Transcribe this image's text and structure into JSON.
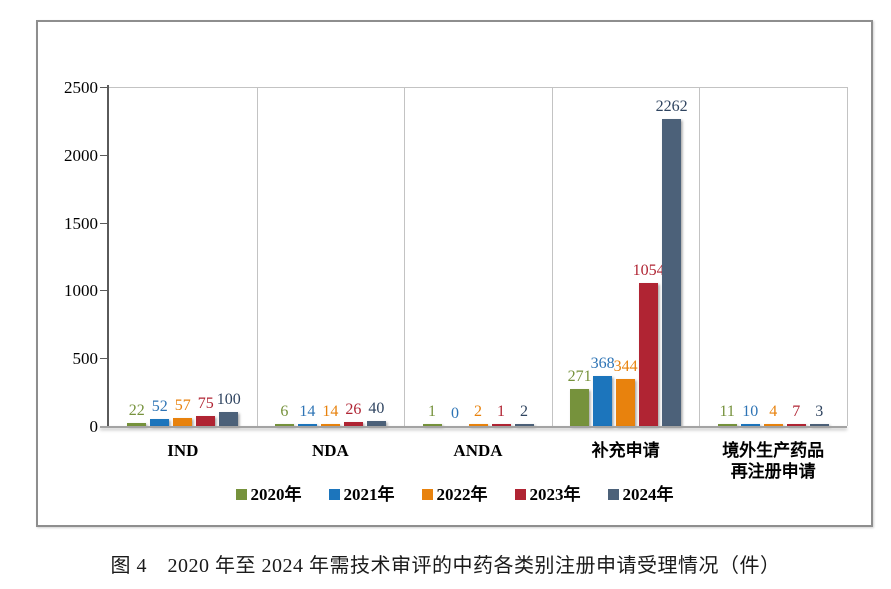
{
  "caption": "图 4　2020 年至 2024 年需技术审评的中药各类别注册申请受理情况（件）",
  "chart_data": {
    "type": "bar",
    "title": "",
    "xlabel": "",
    "ylabel": "",
    "ylim": [
      0,
      2500
    ],
    "y_ticks": [
      0,
      500,
      1000,
      1500,
      2000,
      2500
    ],
    "grid": "vertical-category-separators",
    "legend_position": "bottom",
    "categories": [
      "IND",
      "NDA",
      "ANDA",
      "补充申请",
      "境外生产药品\n再注册申请"
    ],
    "series": [
      {
        "name": "2020年",
        "color": "#76923C",
        "label_color": "#76923C",
        "values": [
          22,
          6,
          1,
          271,
          11
        ]
      },
      {
        "name": "2021年",
        "color": "#1C75BC",
        "label_color": "#2E74B5",
        "values": [
          52,
          14,
          0,
          368,
          10
        ]
      },
      {
        "name": "2022年",
        "color": "#E8820D",
        "label_color": "#E8820D",
        "values": [
          57,
          14,
          2,
          344,
          4
        ]
      },
      {
        "name": "2023年",
        "color": "#B02433",
        "label_color": "#B02433",
        "values": [
          75,
          26,
          1,
          1054,
          7
        ]
      },
      {
        "name": "2024年",
        "color": "#4C6179",
        "label_color": "#2F4460",
        "values": [
          100,
          40,
          2,
          2262,
          3
        ]
      }
    ]
  }
}
